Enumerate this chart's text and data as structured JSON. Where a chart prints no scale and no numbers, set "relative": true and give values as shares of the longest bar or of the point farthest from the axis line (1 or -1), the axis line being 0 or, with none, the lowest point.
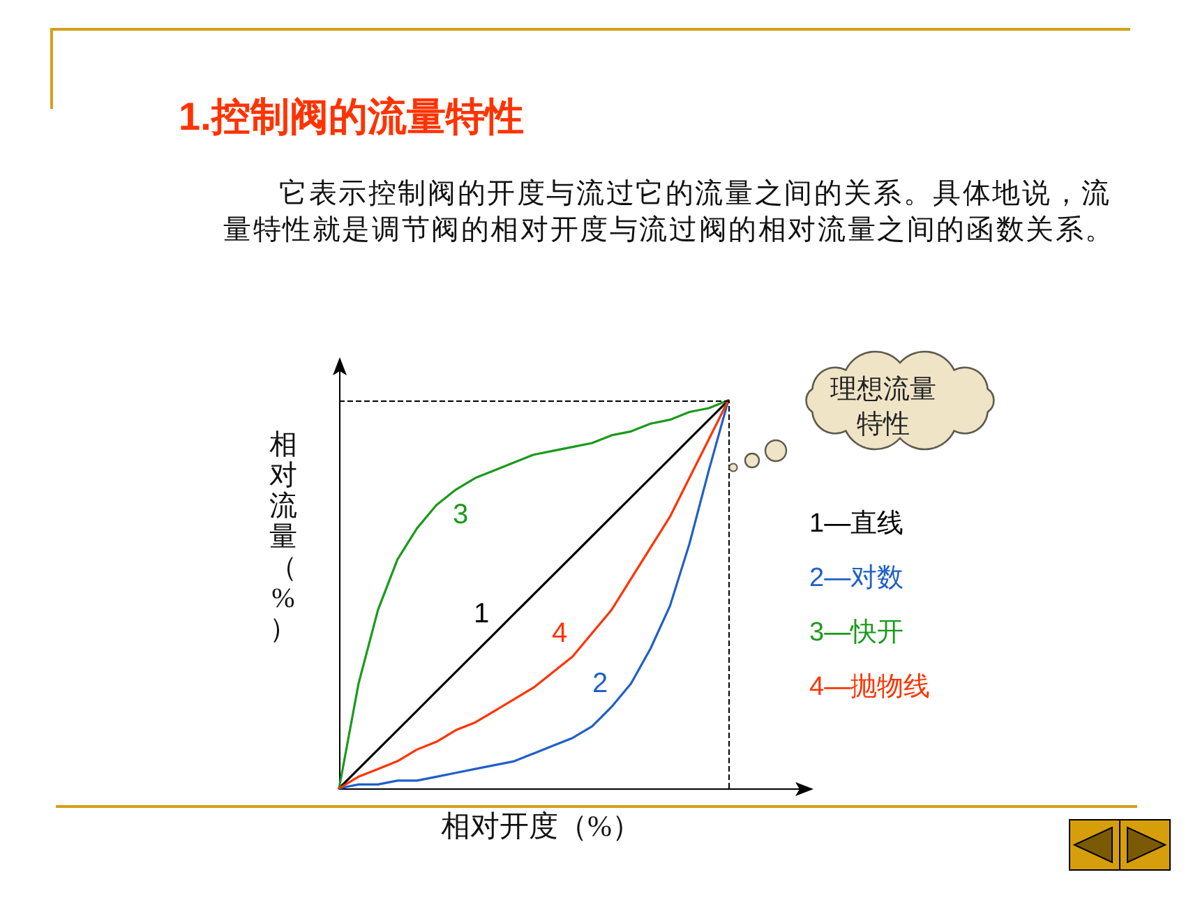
{
  "chart_data": {
    "type": "line",
    "title": "1.控制阀的流量特性",
    "subtitle": "它表示控制阀的开度与流过它的流量之间的关系。具体地说，流量特性就是调节阀的相对开度与流过阀的相对流量之间的函数关系。",
    "xlabel": "相对开度（%）",
    "ylabel": "相对流量（%）",
    "relative": true,
    "marker": "none",
    "legend": "right",
    "categories": [
      null,
      null,
      null,
      null,
      null,
      null,
      null,
      null,
      null,
      null,
      null,
      null,
      null,
      null,
      null,
      null,
      null,
      null,
      null,
      null,
      null
    ],
    "series": [
      {
        "name": "1—直线",
        "color": "#000000",
        "values": [
          0,
          0.05,
          0.1,
          0.15,
          0.2,
          0.25,
          0.3,
          0.35,
          0.4,
          0.45,
          0.5,
          0.55,
          0.6,
          0.65,
          0.7,
          0.75,
          0.8,
          0.85,
          0.9,
          0.95,
          1
        ]
      },
      {
        "name": "2—对数",
        "color": "#1f5fc8",
        "values": [
          0,
          0.01,
          0.01,
          0.02,
          0.02,
          0.03,
          0.04,
          0.05,
          0.06,
          0.07,
          0.09,
          0.11,
          0.13,
          0.16,
          0.21,
          0.27,
          0.36,
          0.47,
          0.63,
          0.82,
          1
        ]
      },
      {
        "name": "3—快开",
        "color": "#1a9a1a",
        "values": [
          0,
          0.27,
          0.46,
          0.59,
          0.67,
          0.73,
          0.77,
          0.8,
          0.82,
          0.84,
          0.86,
          0.87,
          0.88,
          0.89,
          0.91,
          0.92,
          0.94,
          0.95,
          0.97,
          0.98,
          1
        ]
      },
      {
        "name": "4—抛物线",
        "color": "#ff3300",
        "values": [
          0,
          0.03,
          0.05,
          0.07,
          0.1,
          0.12,
          0.15,
          0.17,
          0.2,
          0.23,
          0.26,
          0.3,
          0.34,
          0.4,
          0.46,
          0.54,
          0.62,
          0.7,
          0.8,
          0.9,
          1
        ]
      }
    ],
    "ref_lines": [
      {
        "axis": "y",
        "value": 1,
        "line_style": "dashed",
        "color": "#000000"
      }
    ],
    "annotations": [
      "1",
      "2",
      "3",
      "4",
      "理想流量特性"
    ]
  }
}
